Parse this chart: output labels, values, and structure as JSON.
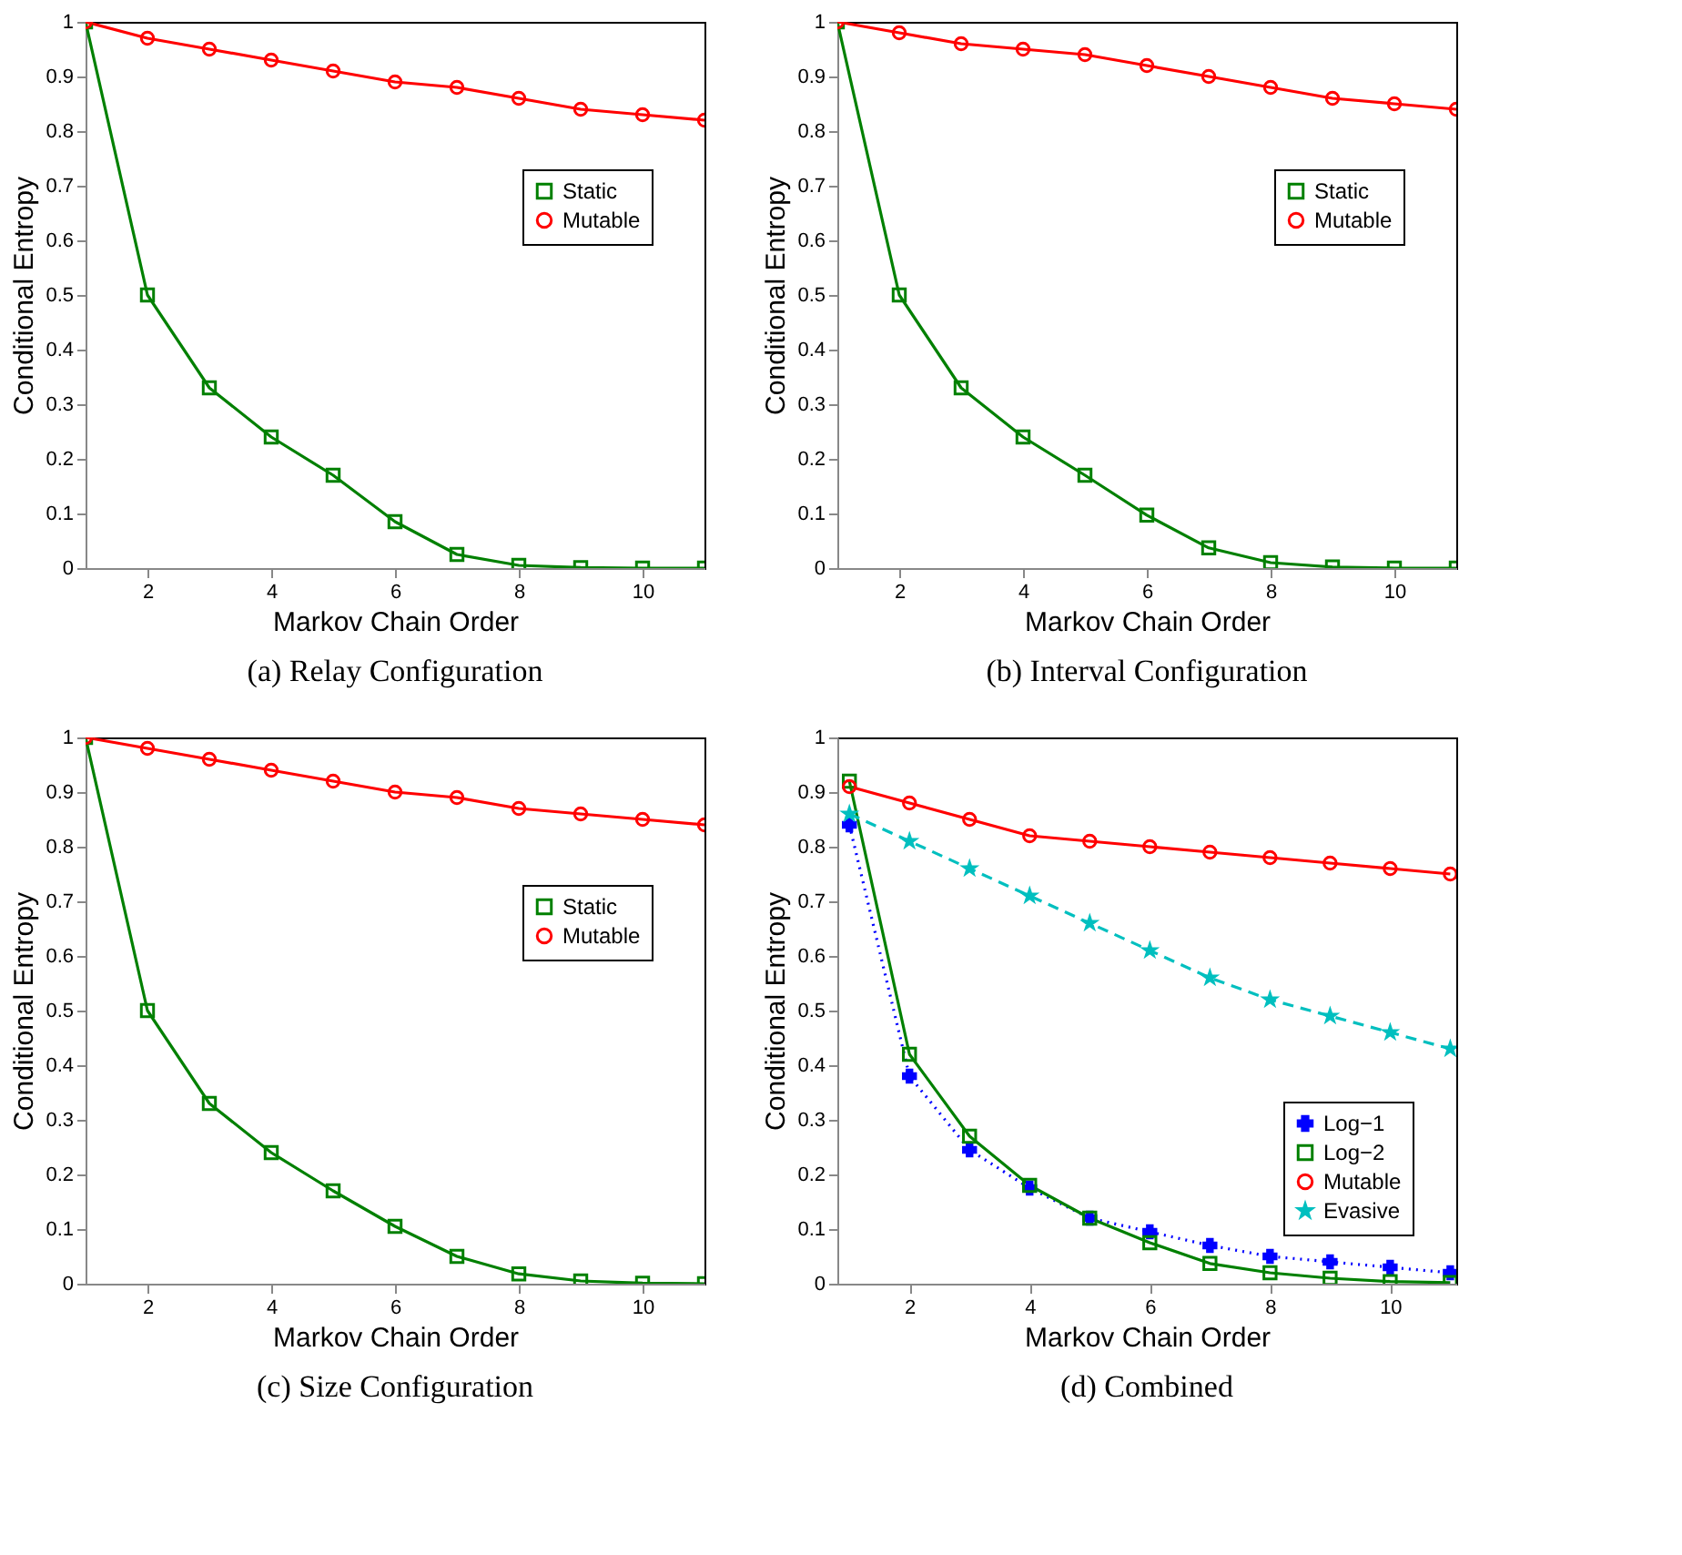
{
  "chart_data": [
    {
      "type": "line",
      "title": "(a) Relay Configuration",
      "xlabel": "Markov Chain Order",
      "ylabel": "Conditional Entropy",
      "x": [
        1,
        2,
        3,
        4,
        5,
        6,
        7,
        8,
        9,
        10,
        11
      ],
      "xlim": [
        1,
        11
      ],
      "xticks": [
        2,
        4,
        6,
        8,
        10
      ],
      "ylim": [
        0,
        1
      ],
      "yticks": [
        0,
        0.1,
        0.2,
        0.3,
        0.4,
        0.5,
        0.6,
        0.7,
        0.8,
        0.9,
        1
      ],
      "legend": "top right",
      "series": [
        {
          "name": "Static",
          "color": "#008000",
          "marker": "square",
          "line_style": "solid",
          "values": [
            1,
            0.5,
            0.33,
            0.24,
            0.17,
            0.085,
            0.025,
            0.005,
            0.001,
            0,
            0
          ]
        },
        {
          "name": "Mutable",
          "color": "#ff0000",
          "marker": "circle",
          "line_style": "solid",
          "values": [
            1,
            0.97,
            0.95,
            0.93,
            0.91,
            0.89,
            0.88,
            0.86,
            0.84,
            0.83,
            0.82
          ]
        }
      ]
    },
    {
      "type": "line",
      "title": "(b) Interval Configuration",
      "xlabel": "Markov Chain Order",
      "ylabel": "Conditional Entropy",
      "x": [
        1,
        2,
        3,
        4,
        5,
        6,
        7,
        8,
        9,
        10,
        11
      ],
      "xlim": [
        1,
        11
      ],
      "xticks": [
        2,
        4,
        6,
        8,
        10
      ],
      "ylim": [
        0,
        1
      ],
      "yticks": [
        0,
        0.1,
        0.2,
        0.3,
        0.4,
        0.5,
        0.6,
        0.7,
        0.8,
        0.9,
        1
      ],
      "legend": "top right",
      "series": [
        {
          "name": "Static",
          "color": "#008000",
          "marker": "square",
          "line_style": "solid",
          "values": [
            1,
            0.5,
            0.33,
            0.24,
            0.17,
            0.097,
            0.037,
            0.01,
            0.002,
            0,
            0
          ]
        },
        {
          "name": "Mutable",
          "color": "#ff0000",
          "marker": "circle",
          "line_style": "solid",
          "values": [
            1,
            0.98,
            0.96,
            0.95,
            0.94,
            0.92,
            0.9,
            0.88,
            0.86,
            0.85,
            0.84
          ]
        }
      ]
    },
    {
      "type": "line",
      "title": "(c) Size Configuration",
      "xlabel": "Markov Chain Order",
      "ylabel": "Conditional Entropy",
      "x": [
        1,
        2,
        3,
        4,
        5,
        6,
        7,
        8,
        9,
        10,
        11
      ],
      "xlim": [
        1,
        11
      ],
      "xticks": [
        2,
        4,
        6,
        8,
        10
      ],
      "ylim": [
        0,
        1
      ],
      "yticks": [
        0,
        0.1,
        0.2,
        0.3,
        0.4,
        0.5,
        0.6,
        0.7,
        0.8,
        0.9,
        1
      ],
      "legend": "top right",
      "series": [
        {
          "name": "Static",
          "color": "#008000",
          "marker": "square",
          "line_style": "solid",
          "values": [
            1,
            0.5,
            0.33,
            0.24,
            0.17,
            0.105,
            0.05,
            0.018,
            0.005,
            0.001,
            0
          ]
        },
        {
          "name": "Mutable",
          "color": "#ff0000",
          "marker": "circle",
          "line_style": "solid",
          "values": [
            1,
            0.98,
            0.96,
            0.94,
            0.92,
            0.9,
            0.89,
            0.87,
            0.86,
            0.85,
            0.84
          ]
        }
      ]
    },
    {
      "type": "line",
      "title": "(d) Combined",
      "xlabel": "Markov Chain Order",
      "ylabel": "Conditional Entropy",
      "x": [
        1,
        2,
        3,
        4,
        5,
        6,
        7,
        8,
        9,
        10,
        11
      ],
      "xlim": [
        0.8,
        11.1
      ],
      "xticks": [
        2,
        4,
        6,
        8,
        10
      ],
      "ylim": [
        0,
        1
      ],
      "yticks": [
        0,
        0.1,
        0.2,
        0.3,
        0.4,
        0.5,
        0.6,
        0.7,
        0.8,
        0.9,
        1
      ],
      "legend": "bottom right",
      "series": [
        {
          "name": "Log−1",
          "color": "#0000ff",
          "marker": "cross",
          "line_style": "dotted",
          "values": [
            0.84,
            0.38,
            0.245,
            0.175,
            0.12,
            0.095,
            0.07,
            0.05,
            0.04,
            0.03,
            0.02
          ]
        },
        {
          "name": "Log−2",
          "color": "#008000",
          "marker": "square",
          "line_style": "solid",
          "values": [
            0.92,
            0.42,
            0.27,
            0.18,
            0.12,
            0.075,
            0.037,
            0.02,
            0.01,
            0.004,
            0.002
          ]
        },
        {
          "name": "Mutable",
          "color": "#ff0000",
          "marker": "circle",
          "line_style": "solid",
          "values": [
            0.91,
            0.88,
            0.85,
            0.82,
            0.81,
            0.8,
            0.79,
            0.78,
            0.77,
            0.76,
            0.75
          ]
        },
        {
          "name": "Evasive",
          "color": "#00bfbf",
          "marker": "star",
          "line_style": "dashed",
          "values": [
            0.86,
            0.81,
            0.76,
            0.71,
            0.66,
            0.61,
            0.56,
            0.52,
            0.49,
            0.46,
            0.43
          ]
        }
      ]
    }
  ]
}
